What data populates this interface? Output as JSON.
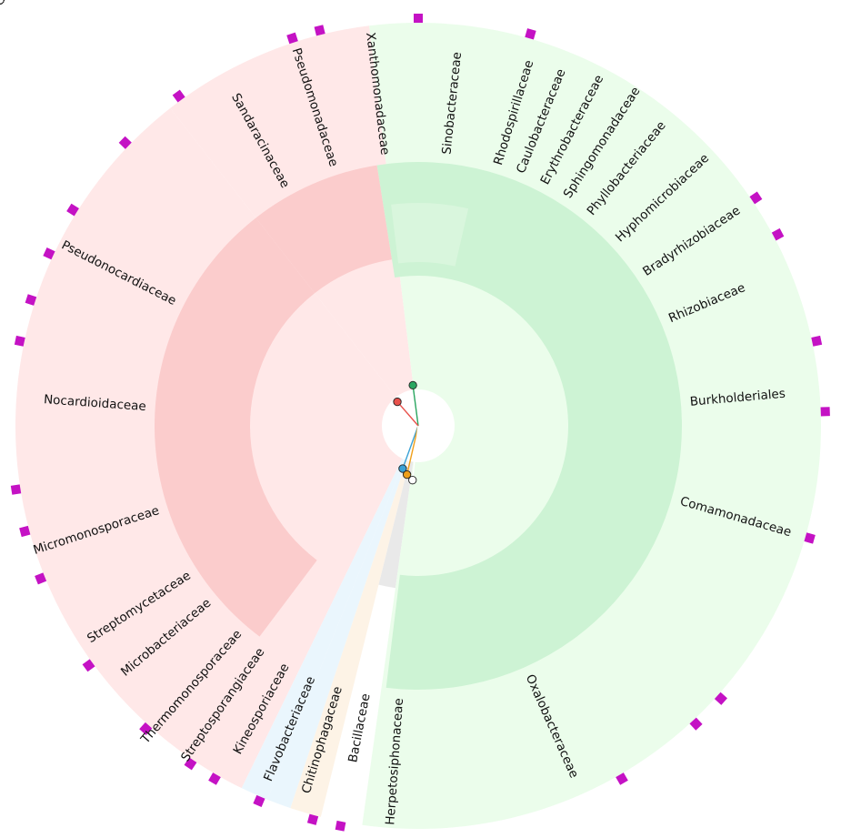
{
  "colors": {
    "actinobacteria": "#e8524c",
    "proteobacteria": "#2aa660",
    "flavobacteriaceae": "#3aa2d6",
    "chitinophagaceae": "#3aa2d6",
    "bacillaceae": "#ef9f1a",
    "herpetosiphonaceae": "#ffffff",
    "root_branch": "#111111",
    "marker": "#c412c4"
  },
  "families": [
    {
      "name": "Sandaracinaceae",
      "group": "proteobacteria"
    },
    {
      "name": "Pseudomonadaceae",
      "group": "proteobacteria"
    },
    {
      "name": "Xanthomonadaceae",
      "group": "proteobacteria"
    },
    {
      "name": "Sinobacteraceae",
      "group": "proteobacteria"
    },
    {
      "name": "Rhodospirillaceae",
      "group": "proteobacteria"
    },
    {
      "name": "Caulobacteraceae",
      "group": "proteobacteria"
    },
    {
      "name": "Erythrobacteraceae",
      "group": "proteobacteria"
    },
    {
      "name": "Sphingomonadaceae",
      "group": "proteobacteria"
    },
    {
      "name": "Phyllobacteriaceae",
      "group": "proteobacteria"
    },
    {
      "name": "Hyphomicrobiaceae",
      "group": "proteobacteria"
    },
    {
      "name": "Bradyrhizobiaceae",
      "group": "proteobacteria"
    },
    {
      "name": "Rhizobiaceae",
      "group": "proteobacteria"
    },
    {
      "name": "Burkholderiales",
      "group": "proteobacteria"
    },
    {
      "name": "Comamonadaceae",
      "group": "proteobacteria"
    },
    {
      "name": "Oxalobacteraceae",
      "group": "proteobacteria"
    },
    {
      "name": "Herpetosiphonaceae",
      "group": "herpetosiphonaceae"
    },
    {
      "name": "Bacillaceae",
      "group": "bacillaceae"
    },
    {
      "name": "Chitinophagaceae",
      "group": "chitinophagaceae"
    },
    {
      "name": "Flavobacteriaceae",
      "group": "flavobacteriaceae"
    },
    {
      "name": "Kineosporiaceae",
      "group": "actinobacteria"
    },
    {
      "name": "Streptosporangiaceae",
      "group": "actinobacteria"
    },
    {
      "name": "Thermomonosporaceae",
      "group": "actinobacteria"
    },
    {
      "name": "Microbacteriaceae",
      "group": "actinobacteria"
    },
    {
      "name": "Streptomycetaceae",
      "group": "actinobacteria"
    },
    {
      "name": "Micromonosporaceae",
      "group": "actinobacteria"
    },
    {
      "name": "Nocardioidaceae",
      "group": "actinobacteria"
    },
    {
      "name": "Pseudonocardiaceae",
      "group": "actinobacteria"
    }
  ]
}
